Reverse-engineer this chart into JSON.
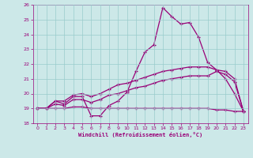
{
  "xlabel": "Windchill (Refroidissement éolien,°C)",
  "xlim": [
    -0.5,
    23.5
  ],
  "ylim": [
    18,
    26
  ],
  "xticks": [
    0,
    1,
    2,
    3,
    4,
    5,
    6,
    7,
    8,
    9,
    10,
    11,
    12,
    13,
    14,
    15,
    16,
    17,
    18,
    19,
    20,
    21,
    22,
    23
  ],
  "yticks": [
    18,
    19,
    20,
    21,
    22,
    23,
    24,
    25,
    26
  ],
  "bg_color": "#cce8e8",
  "grid_color": "#99cccc",
  "line_color": "#990077",
  "line1_y": [
    19.0,
    19.0,
    19.5,
    19.3,
    19.8,
    19.8,
    18.5,
    18.5,
    19.2,
    19.5,
    20.1,
    21.5,
    22.8,
    23.3,
    25.8,
    25.2,
    24.7,
    24.8,
    23.8,
    22.1,
    21.6,
    21.0,
    20.0,
    18.8
  ],
  "line2_y": [
    19.0,
    19.0,
    19.5,
    19.5,
    19.9,
    20.0,
    19.8,
    20.0,
    20.3,
    20.6,
    20.7,
    20.9,
    21.1,
    21.3,
    21.5,
    21.6,
    21.7,
    21.8,
    21.8,
    21.8,
    21.6,
    21.5,
    21.0,
    18.8
  ],
  "line3_y": [
    19.0,
    19.0,
    19.3,
    19.2,
    19.6,
    19.6,
    19.4,
    19.6,
    19.9,
    20.0,
    20.2,
    20.4,
    20.5,
    20.7,
    20.9,
    21.0,
    21.1,
    21.2,
    21.2,
    21.2,
    21.5,
    21.3,
    20.8,
    18.8
  ],
  "line4_y": [
    19.0,
    19.0,
    19.0,
    19.0,
    19.1,
    19.1,
    19.0,
    19.0,
    19.0,
    19.0,
    19.0,
    19.0,
    19.0,
    19.0,
    19.0,
    19.0,
    19.0,
    19.0,
    19.0,
    19.0,
    18.9,
    18.9,
    18.8,
    18.8
  ]
}
